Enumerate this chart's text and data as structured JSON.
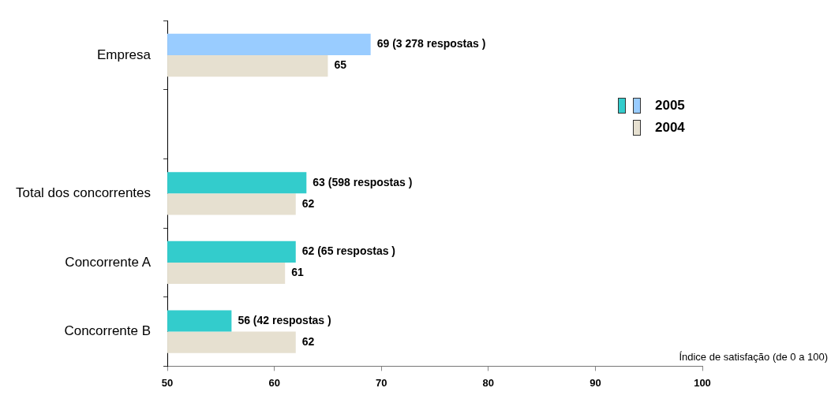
{
  "chart_data": {
    "type": "bar",
    "orientation": "horizontal",
    "xlabel": "Índice de satisfação (de 0 a 100)",
    "categories": [
      "Empresa",
      null,
      "Total dos concorrentes",
      "Concorrente A",
      "Concorrente B"
    ],
    "series": [
      {
        "name": "2005",
        "colors": [
          "#99ccff",
          null,
          "#33cccc",
          "#33cccc",
          "#33cccc"
        ],
        "values": [
          69,
          null,
          63,
          62,
          56
        ],
        "value_labels": [
          "69 (3 278 respostas )",
          null,
          "63 (598 respostas )",
          "62 (65 respostas )",
          "56 (42 respostas )"
        ]
      },
      {
        "name": "2004",
        "color": "#e6e0d0",
        "values": [
          65,
          null,
          62,
          61,
          62
        ],
        "value_labels": [
          "65",
          null,
          "62",
          "61",
          "62"
        ]
      }
    ],
    "xlim": [
      50,
      100
    ],
    "xticks": [
      50,
      60,
      70,
      80,
      90,
      100
    ],
    "grid": false,
    "legend": "top right"
  }
}
